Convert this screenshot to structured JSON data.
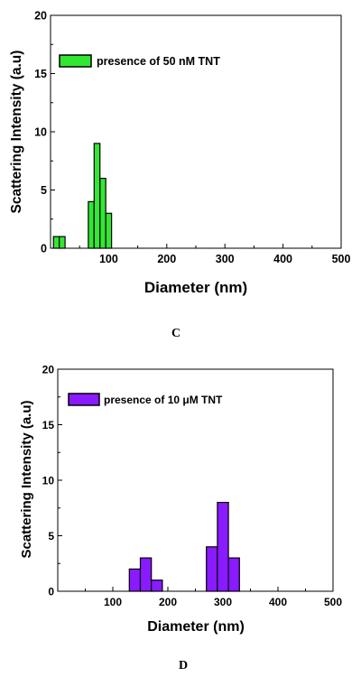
{
  "chart_data": [
    {
      "type": "bar",
      "panel_label": "C",
      "legend": {
        "label": "presence of 50 nM TNT",
        "placement": "top-left"
      },
      "xlabel": "Diameter (nm)",
      "ylabel": "Scattering Intensity (a.u)",
      "xlim": [
        0,
        500
      ],
      "ylim": [
        0,
        20
      ],
      "xticks": [
        100,
        200,
        300,
        400,
        500
      ],
      "yticks": [
        0,
        5,
        10,
        15,
        20
      ],
      "bar_width": 10,
      "color": "#33e633",
      "grid": false,
      "bars": [
        {
          "x": 10,
          "y": 1
        },
        {
          "x": 20,
          "y": 1
        },
        {
          "x": 70,
          "y": 4
        },
        {
          "x": 80,
          "y": 9
        },
        {
          "x": 90,
          "y": 6
        },
        {
          "x": 100,
          "y": 3
        }
      ]
    },
    {
      "type": "bar",
      "panel_label": "D",
      "legend": {
        "label": "presence of 10 μM TNT",
        "placement": "top-left"
      },
      "xlabel": "Diameter (nm)",
      "ylabel": "Scattering Intensity (a.u)",
      "xlim": [
        0,
        500
      ],
      "ylim": [
        0,
        20
      ],
      "xticks": [
        100,
        200,
        300,
        400,
        500
      ],
      "yticks": [
        0,
        5,
        10,
        15,
        20
      ],
      "bar_width": 20,
      "color": "#8a1aff",
      "grid": false,
      "bars": [
        {
          "x": 140,
          "y": 2
        },
        {
          "x": 160,
          "y": 3
        },
        {
          "x": 180,
          "y": 1
        },
        {
          "x": 280,
          "y": 4
        },
        {
          "x": 300,
          "y": 8
        },
        {
          "x": 320,
          "y": 3
        }
      ]
    }
  ]
}
